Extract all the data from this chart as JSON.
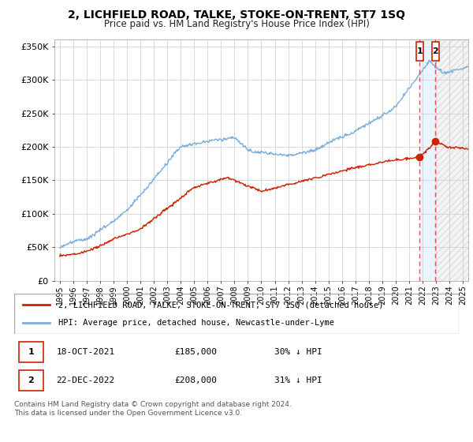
{
  "title": "2, LICHFIELD ROAD, TALKE, STOKE-ON-TRENT, ST7 1SQ",
  "subtitle": "Price paid vs. HM Land Registry's House Price Index (HPI)",
  "hpi_label": "HPI: Average price, detached house, Newcastle-under-Lyme",
  "property_label": "2, LICHFIELD ROAD, TALKE, STOKE-ON-TRENT, ST7 1SQ (detached house)",
  "sale1_date": "18-OCT-2021",
  "sale1_price": "£185,000",
  "sale1_note": "30% ↓ HPI",
  "sale2_date": "22-DEC-2022",
  "sale2_price": "£208,000",
  "sale2_note": "31% ↓ HPI",
  "footer": "Contains HM Land Registry data © Crown copyright and database right 2024.\nThis data is licensed under the Open Government Licence v3.0.",
  "ylim": [
    0,
    360000
  ],
  "yticks": [
    0,
    50000,
    100000,
    150000,
    200000,
    250000,
    300000,
    350000
  ],
  "ytick_labels": [
    "£0",
    "£50K",
    "£100K",
    "£150K",
    "£200K",
    "£250K",
    "£300K",
    "£350K"
  ],
  "hpi_color": "#7aaddc",
  "property_color": "#cc2200",
  "dashed_color": "#dd4444",
  "sale1_x": 2021.79,
  "sale1_y": 185000,
  "sale2_x": 2022.96,
  "sale2_y": 208000,
  "grid_color": "#cccccc",
  "xmin": 1994.6,
  "xmax": 2025.4
}
